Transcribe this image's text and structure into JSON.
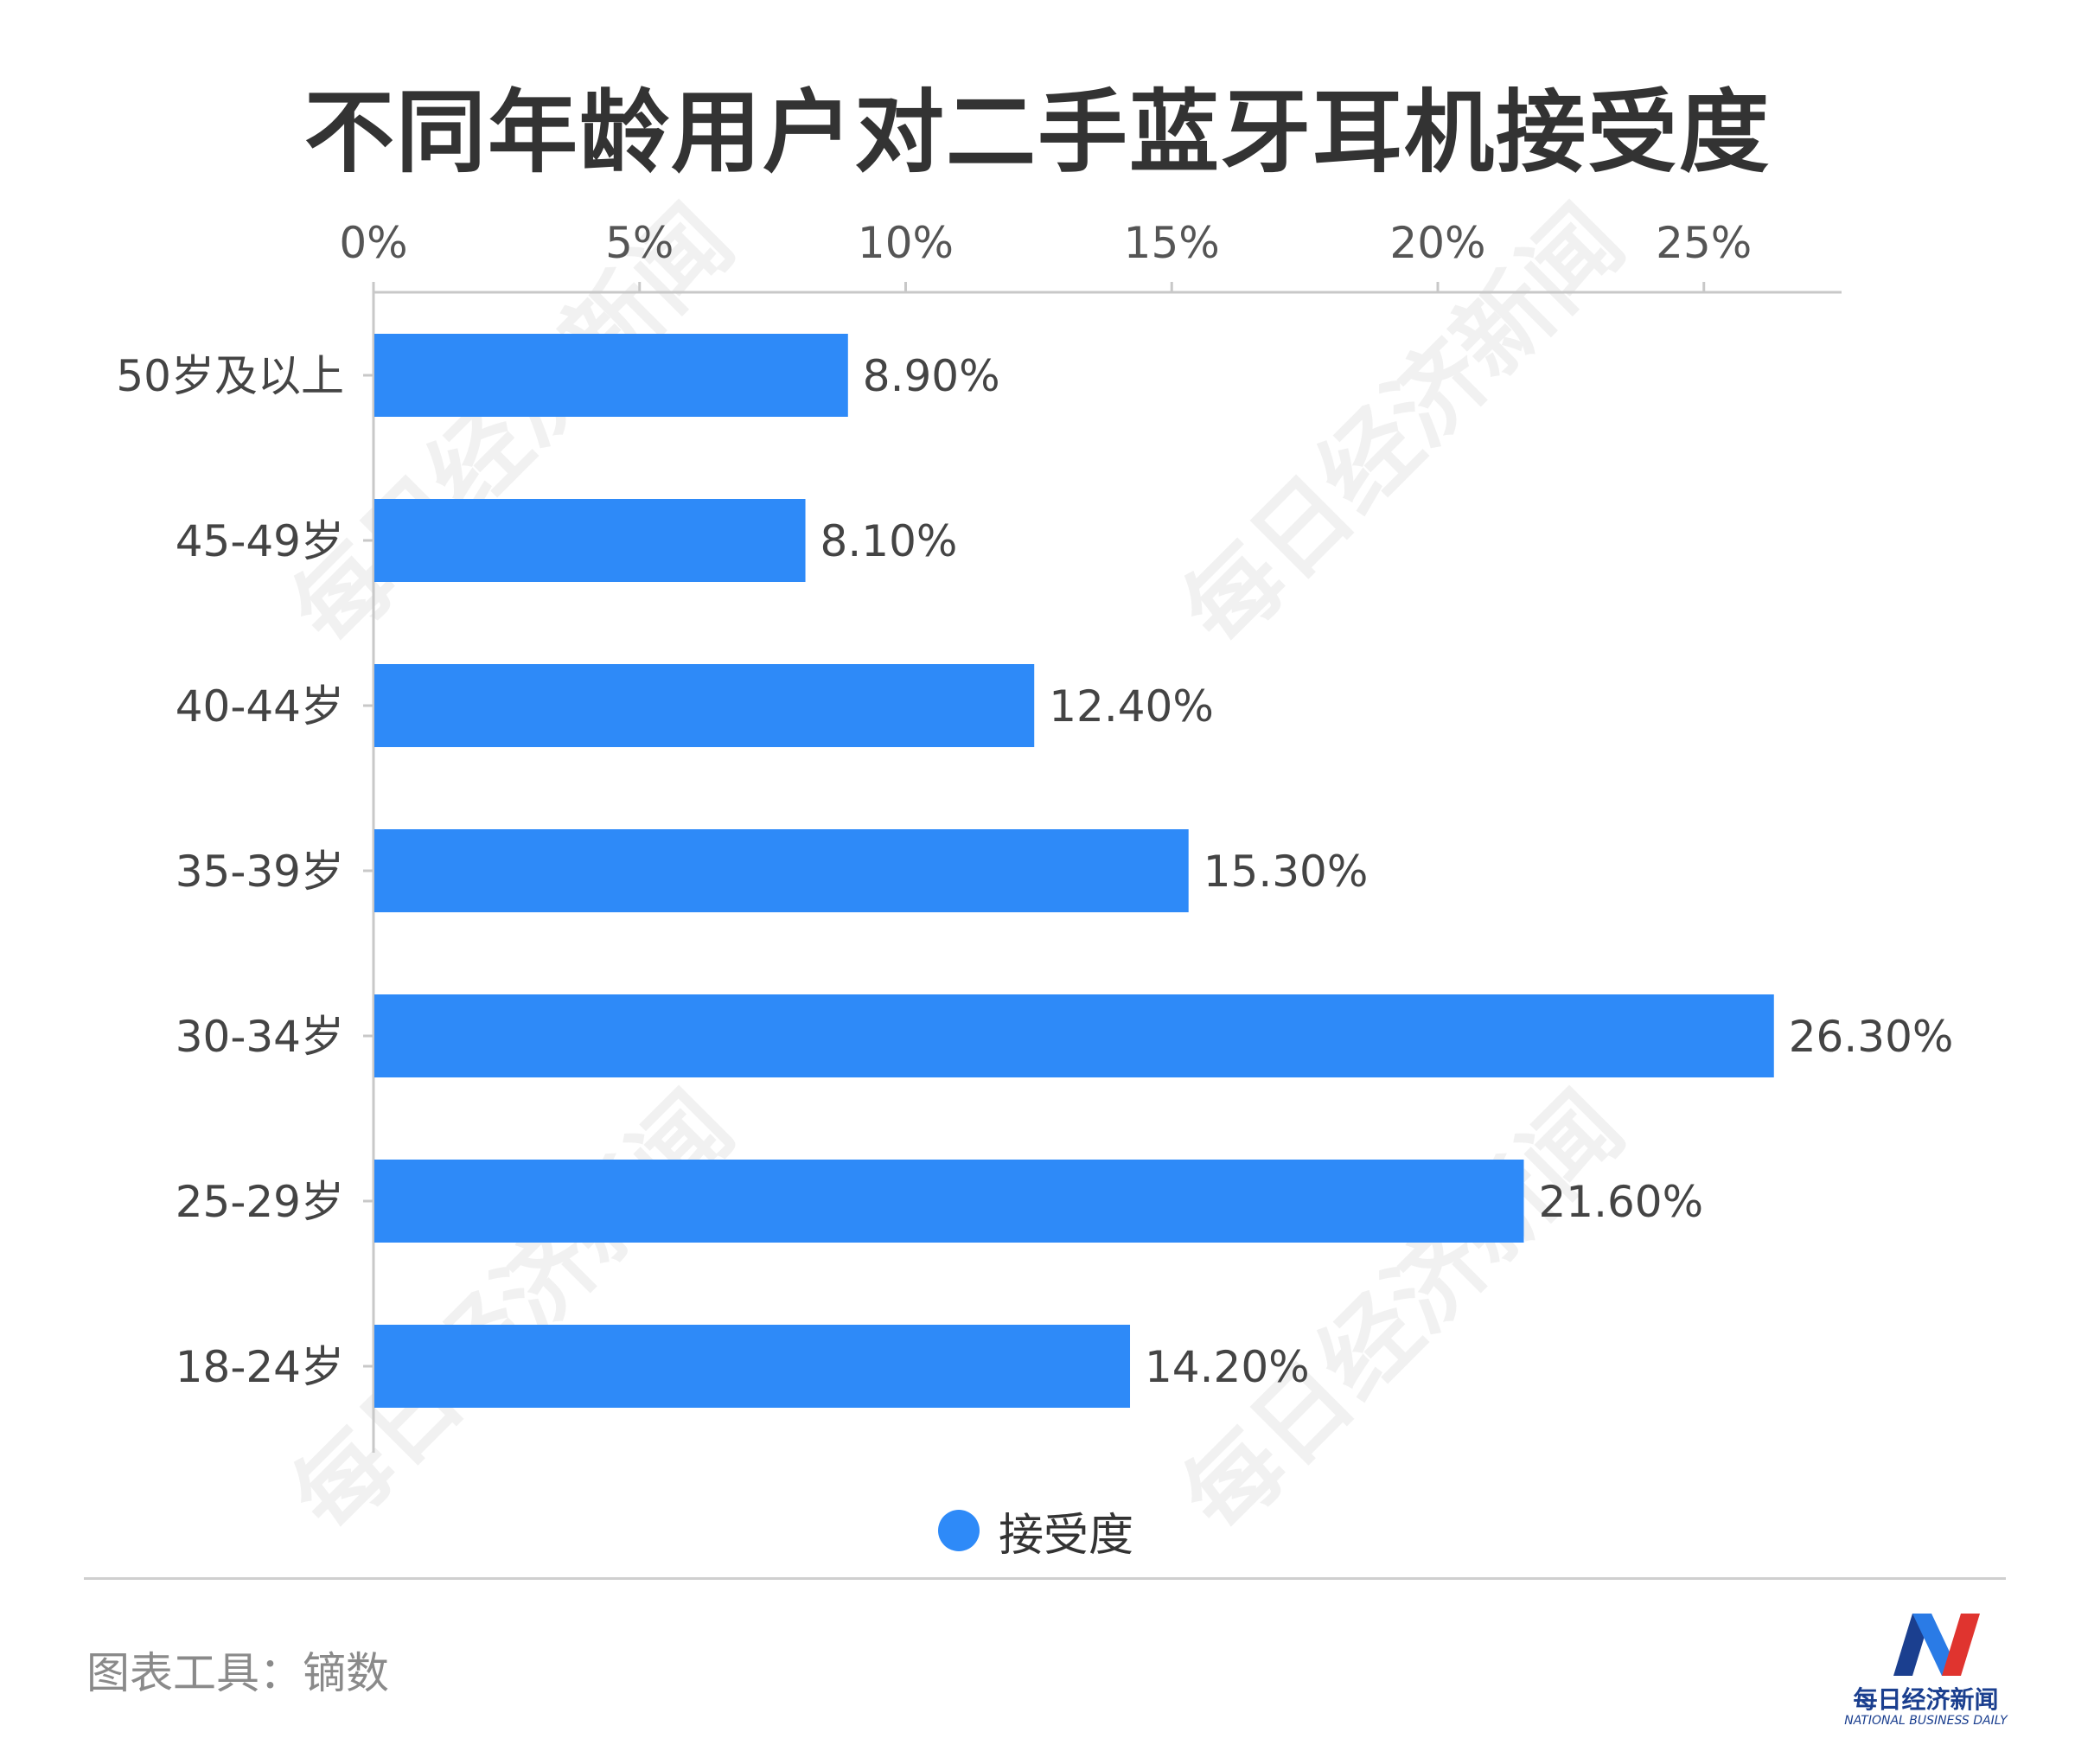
{
  "chart_data": {
    "type": "bar",
    "orientation": "horizontal",
    "title": "不同年龄用户对二手蓝牙耳机接受度",
    "categories": [
      "50岁及以上",
      "45-49岁",
      "40-44岁",
      "35-39岁",
      "30-34岁",
      "25-29岁",
      "18-24岁"
    ],
    "series": [
      {
        "name": "接受度",
        "values": [
          8.9,
          8.1,
          12.4,
          15.3,
          26.3,
          21.6,
          14.2
        ],
        "labels": [
          "8.90%",
          "8.10%",
          "12.40%",
          "15.30%",
          "26.30%",
          "21.60%",
          "14.20%"
        ]
      }
    ],
    "x_ticks": [
      "0%",
      "5%",
      "10%",
      "15%",
      "20%",
      "25%"
    ],
    "xlim": [
      0,
      27.5
    ],
    "axis_position": "top",
    "grid": false,
    "legend_position": "bottom",
    "bar_color": "#2E8AF8"
  },
  "footer": {
    "source": "图表工具：镝数"
  },
  "logo": {
    "cn": "每日经济新闻",
    "en": "NATIONAL BUSINESS DAILY"
  },
  "watermark": "每日经济新闻"
}
